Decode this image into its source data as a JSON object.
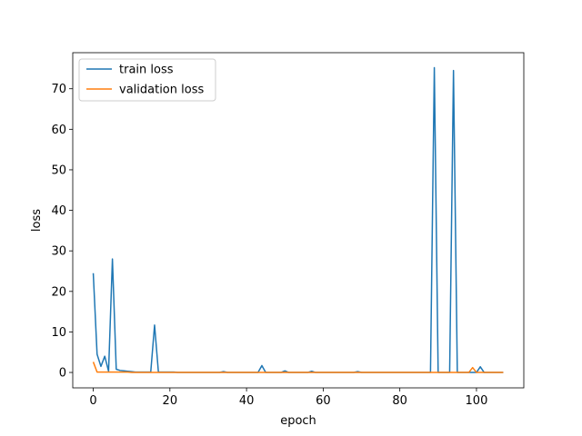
{
  "chart_data": {
    "type": "line",
    "title": "",
    "xlabel": "epoch",
    "ylabel": "loss",
    "xlim": [
      -5.35,
      112.35
    ],
    "ylim": [
      -3.8,
      78.9
    ],
    "xticks": [
      0,
      20,
      40,
      60,
      80,
      100
    ],
    "yticks": [
      0,
      10,
      20,
      30,
      40,
      50,
      60,
      70
    ],
    "grid": false,
    "legend_position": "top-left",
    "series": [
      {
        "name": "train loss",
        "color": "#1f77b4",
        "x": [
          0,
          1,
          2,
          3,
          4,
          5,
          6,
          7,
          8,
          9,
          10,
          11,
          12,
          13,
          14,
          15,
          16,
          17,
          18,
          19,
          20,
          21,
          22,
          23,
          24,
          25,
          26,
          27,
          28,
          29,
          30,
          31,
          32,
          33,
          34,
          35,
          36,
          37,
          38,
          39,
          40,
          41,
          42,
          43,
          44,
          45,
          46,
          47,
          48,
          49,
          50,
          51,
          52,
          53,
          54,
          55,
          56,
          57,
          58,
          59,
          60,
          61,
          62,
          63,
          64,
          65,
          66,
          67,
          68,
          69,
          70,
          71,
          72,
          73,
          74,
          75,
          76,
          77,
          78,
          79,
          80,
          81,
          82,
          83,
          84,
          85,
          86,
          87,
          88,
          89,
          90,
          91,
          92,
          93,
          94,
          95,
          96,
          97,
          98,
          99,
          100,
          101,
          102,
          103,
          104,
          105,
          106,
          107
        ],
        "y": [
          24.5,
          4.5,
          1.5,
          4.0,
          0.3,
          28.0,
          0.8,
          0.5,
          0.4,
          0.3,
          0.2,
          0.1,
          0.1,
          0.1,
          0.1,
          0.1,
          11.7,
          0.1,
          0.1,
          0.1,
          0.1,
          0.1,
          0.0,
          0.0,
          0.0,
          0.0,
          0.0,
          0.0,
          0.0,
          0.0,
          0.0,
          0.0,
          0.0,
          0.0,
          0.2,
          0.0,
          0.0,
          0.0,
          0.0,
          0.0,
          0.0,
          0.0,
          0.0,
          0.0,
          1.7,
          0.0,
          0.0,
          0.0,
          0.0,
          0.0,
          0.4,
          0.0,
          0.0,
          0.0,
          0.0,
          0.0,
          0.0,
          0.3,
          0.0,
          0.0,
          0.0,
          0.0,
          0.0,
          0.0,
          0.0,
          0.0,
          0.0,
          0.0,
          0.0,
          0.2,
          0.0,
          0.0,
          0.0,
          0.0,
          0.0,
          0.0,
          0.0,
          0.0,
          0.0,
          0.0,
          0.0,
          0.0,
          0.0,
          0.0,
          0.0,
          0.0,
          0.0,
          0.0,
          0.0,
          75.2,
          0.0,
          0.0,
          0.0,
          0.0,
          74.5,
          0.0,
          0.0,
          0.0,
          0.0,
          0.0,
          0.0,
          1.4,
          0.0,
          0.0,
          0.0,
          0.0,
          0.0,
          0.0
        ]
      },
      {
        "name": "validation loss",
        "color": "#ff7f0e",
        "x": [
          0,
          1,
          2,
          3,
          4,
          5,
          6,
          7,
          8,
          9,
          10,
          11,
          12,
          13,
          14,
          15,
          16,
          17,
          18,
          19,
          20,
          21,
          22,
          23,
          24,
          25,
          26,
          27,
          28,
          29,
          30,
          31,
          32,
          33,
          34,
          35,
          36,
          37,
          38,
          39,
          40,
          41,
          42,
          43,
          44,
          45,
          46,
          47,
          48,
          49,
          50,
          51,
          52,
          53,
          54,
          55,
          56,
          57,
          58,
          59,
          60,
          61,
          62,
          63,
          64,
          65,
          66,
          67,
          68,
          69,
          70,
          71,
          72,
          73,
          74,
          75,
          76,
          77,
          78,
          79,
          80,
          81,
          82,
          83,
          84,
          85,
          86,
          87,
          88,
          89,
          90,
          91,
          92,
          93,
          94,
          95,
          96,
          97,
          98,
          99,
          100,
          101,
          102,
          103,
          104,
          105,
          106,
          107
        ],
        "y": [
          2.6,
          0.1,
          0.1,
          0.1,
          0.1,
          0.1,
          0.1,
          0.1,
          0.1,
          0.1,
          0.0,
          0.0,
          0.0,
          0.0,
          0.0,
          0.0,
          0.0,
          0.0,
          0.0,
          0.0,
          0.0,
          0.0,
          0.0,
          0.0,
          0.0,
          0.0,
          0.0,
          0.0,
          0.0,
          0.0,
          0.0,
          0.0,
          0.0,
          0.0,
          0.0,
          0.0,
          0.0,
          0.0,
          0.0,
          0.0,
          0.0,
          0.0,
          0.0,
          0.0,
          0.0,
          0.0,
          0.0,
          0.0,
          0.0,
          0.0,
          0.0,
          0.0,
          0.0,
          0.0,
          0.0,
          0.0,
          0.0,
          0.0,
          0.0,
          0.0,
          0.0,
          0.0,
          0.0,
          0.0,
          0.0,
          0.0,
          0.0,
          0.0,
          0.0,
          0.0,
          0.0,
          0.0,
          0.0,
          0.0,
          0.0,
          0.0,
          0.0,
          0.0,
          0.0,
          0.0,
          0.0,
          0.0,
          0.0,
          0.0,
          0.0,
          0.0,
          0.0,
          0.0,
          0.0,
          0.0,
          0.0,
          0.0,
          0.0,
          0.0,
          0.0,
          0.0,
          0.0,
          0.0,
          0.0,
          1.2,
          0.0,
          0.0,
          0.0,
          0.0,
          0.0,
          0.0,
          0.0,
          0.0
        ]
      }
    ]
  }
}
